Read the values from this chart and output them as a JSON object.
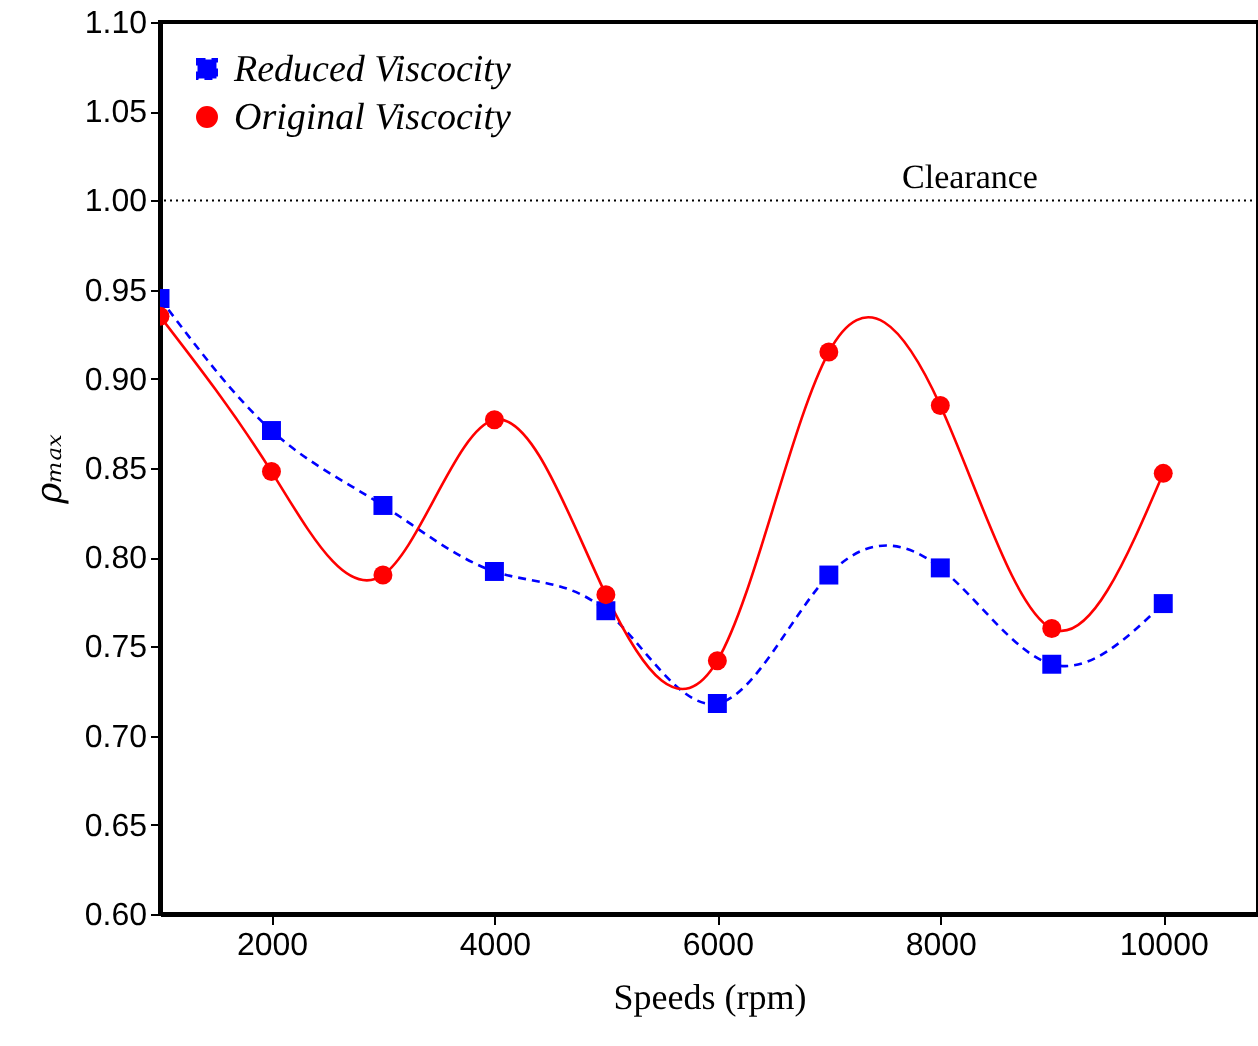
{
  "chart_data": {
    "type": "line",
    "xlabel": "Speeds (rpm)",
    "ylabel": "ρₘₐₓ",
    "x": [
      1000,
      2000,
      3000,
      4000,
      5000,
      6000,
      7000,
      8000,
      9000,
      10000
    ],
    "series": [
      {
        "name": "Reduced Viscocity",
        "color": "#0000ff",
        "marker": "square",
        "line_style": "dashed",
        "values": [
          0.945,
          0.871,
          0.829,
          0.792,
          0.77,
          0.718,
          0.79,
          0.794,
          0.74,
          0.774
        ]
      },
      {
        "name": "Original Viscocity",
        "color": "#ff0000",
        "marker": "circle",
        "line_style": "solid",
        "values": [
          0.935,
          0.848,
          0.79,
          0.877,
          0.779,
          0.742,
          0.915,
          0.885,
          0.76,
          0.847
        ]
      }
    ],
    "xlim": [
      1000,
      10850
    ],
    "xticks": [
      2000,
      4000,
      6000,
      8000,
      10000
    ],
    "ylim": [
      0.6,
      1.1
    ],
    "yticks": [
      {
        "value": 0.6,
        "label": "0.60"
      },
      {
        "value": 0.65,
        "label": "0.65"
      },
      {
        "value": 0.7,
        "label": "0.70"
      },
      {
        "value": 0.75,
        "label": "0.75"
      },
      {
        "value": 0.8,
        "label": "0.80"
      },
      {
        "value": 0.85,
        "label": "0.85"
      },
      {
        "value": 0.9,
        "label": "0.90"
      },
      {
        "value": 0.95,
        "label": "0.95"
      },
      {
        "value": 1.0,
        "label": "1.00"
      },
      {
        "value": 1.05,
        "label": "1.05"
      },
      {
        "value": 1.1,
        "label": "1.10"
      }
    ],
    "ref_lines": [
      {
        "axis": "y",
        "value": 1.0,
        "label": "Clearance",
        "color": "#000000",
        "line_style": "dotted"
      }
    ],
    "legend": "top left",
    "grid": false
  }
}
